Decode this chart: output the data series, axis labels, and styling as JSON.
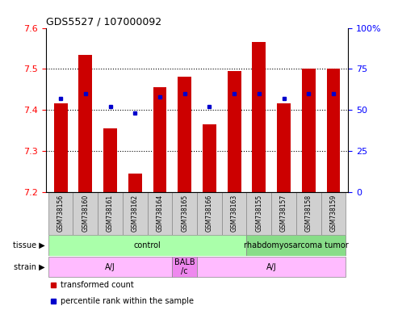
{
  "title": "GDS5527 / 107000092",
  "samples": [
    "GSM738156",
    "GSM738160",
    "GSM738161",
    "GSM738162",
    "GSM738164",
    "GSM738165",
    "GSM738166",
    "GSM738163",
    "GSM738155",
    "GSM738157",
    "GSM738158",
    "GSM738159"
  ],
  "bar_values": [
    7.415,
    7.535,
    7.355,
    7.245,
    7.455,
    7.48,
    7.365,
    7.495,
    7.565,
    7.415,
    7.5,
    7.5
  ],
  "blue_dot_percentile": [
    57,
    60,
    52,
    48,
    58,
    60,
    52,
    60,
    60,
    57,
    60,
    60
  ],
  "ymin": 7.2,
  "ymax": 7.6,
  "yticks_left": [
    7.2,
    7.3,
    7.4,
    7.5,
    7.6
  ],
  "yticks_right": [
    0,
    25,
    50,
    75,
    100
  ],
  "bar_color": "#cc0000",
  "dot_color": "#0000cc",
  "tissue_groups": [
    {
      "label": "control",
      "start": 0,
      "end": 8,
      "color": "#aaffaa"
    },
    {
      "label": "rhabdomyosarcoma tumor",
      "start": 8,
      "end": 12,
      "color": "#88dd88"
    }
  ],
  "strain_groups": [
    {
      "label": "A/J",
      "start": 0,
      "end": 5,
      "color": "#ffbbff"
    },
    {
      "label": "BALB\n/c",
      "start": 5,
      "end": 6,
      "color": "#ee88ee"
    },
    {
      "label": "A/J",
      "start": 6,
      "end": 12,
      "color": "#ffbbff"
    }
  ],
  "legend_items": [
    {
      "label": "transformed count",
      "color": "#cc0000"
    },
    {
      "label": "percentile rank within the sample",
      "color": "#0000cc"
    }
  ],
  "tissue_label": "tissue",
  "strain_label": "strain",
  "sample_cell_color": "#d0d0d0",
  "title_fontsize": 9,
  "axis_fontsize": 8,
  "label_fontsize": 7,
  "sample_fontsize": 5.5
}
